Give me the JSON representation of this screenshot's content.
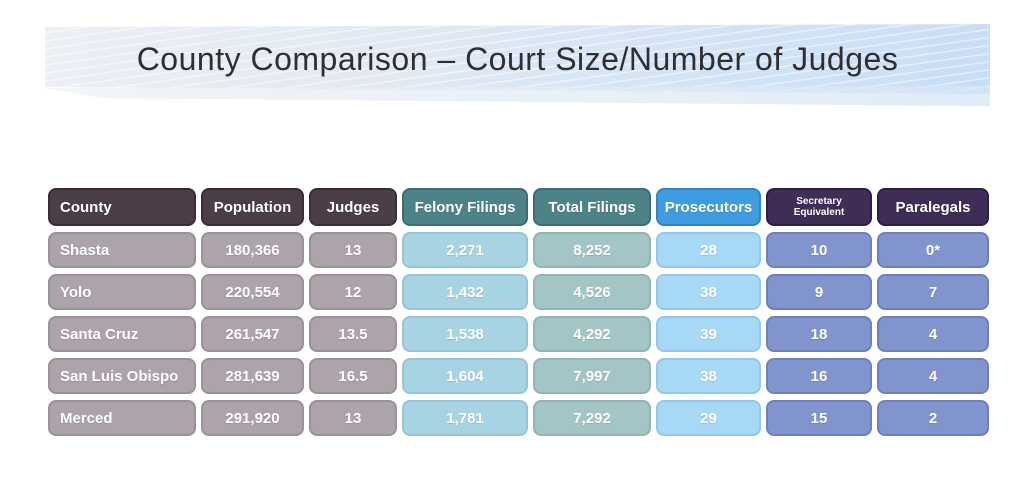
{
  "slide": {
    "title": "County Comparison – Court Size/Number of Judges"
  },
  "table": {
    "headers": [
      {
        "label": "County"
      },
      {
        "label": "Population"
      },
      {
        "label": "Judges"
      },
      {
        "label": "Felony Filings"
      },
      {
        "label": "Total Filings"
      },
      {
        "label": "Prosecutors"
      },
      {
        "label": "Secretary Equivalent"
      },
      {
        "label": "Paralegals"
      }
    ],
    "rows": [
      {
        "cells": [
          "Shasta",
          "180,366",
          "13",
          "2,271",
          "8,252",
          "28",
          "10",
          "0*"
        ]
      },
      {
        "cells": [
          "Yolo",
          "220,554",
          "12",
          "1,432",
          "4,526",
          "38",
          "9",
          "7"
        ]
      },
      {
        "cells": [
          "Santa Cruz",
          "261,547",
          "13.5",
          "1,538",
          "4,292",
          "39",
          "18",
          "4"
        ]
      },
      {
        "cells": [
          "San Luis Obispo",
          "281,639",
          "16.5",
          "1,604",
          "7,997",
          "38",
          "16",
          "4"
        ]
      },
      {
        "cells": [
          "Merced",
          "291,920",
          "13",
          "1,781",
          "7,292",
          "29",
          "15",
          "2"
        ]
      }
    ]
  },
  "colors": {
    "header_dark": "#4b3e47",
    "header_teal": "#4e8289",
    "header_blue": "#3f9cdf",
    "header_purple": "#3f2d56",
    "row_gray": "#aca4aa",
    "row_light_blue": "#a8d3e3",
    "row_seafoam": "#a4c5c5",
    "row_sky_blue": "#a7d8f5",
    "row_periwinkle": "#8294cd",
    "banner_blue": "#c8def6",
    "title_text": "#2f2f33"
  }
}
